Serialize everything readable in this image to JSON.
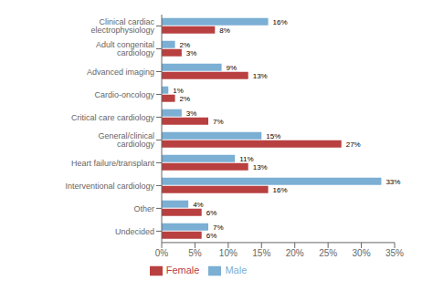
{
  "chart_data": {
    "type": "bar",
    "orientation": "horizontal",
    "categories": [
      "Clinical cardiac electrophysiology",
      "Adult congenital cardiology",
      "Advanced imaging",
      "Cardio-oncology",
      "Critical care cardiology",
      "General/clinical cardiology",
      "Heart failure/transplant",
      "Interventional cardiology",
      "Other",
      "Undecided"
    ],
    "series": [
      {
        "name": "Male",
        "color": "#7bafd4",
        "values": [
          16,
          2,
          9,
          1,
          3,
          15,
          11,
          33,
          4,
          7
        ],
        "value_labels": [
          "16%",
          "2%",
          "9%",
          "1%",
          "3%",
          "15%",
          "11%",
          "33%",
          "4%",
          "7%"
        ]
      },
      {
        "name": "Female",
        "color": "#b94040",
        "values": [
          8,
          3,
          13,
          2,
          7,
          27,
          13,
          16,
          6,
          6
        ],
        "value_labels": [
          "8%",
          "3%",
          "13%",
          "2%",
          "7%",
          "27%",
          "13%",
          "16%",
          "6%",
          "6%"
        ]
      }
    ],
    "xlim": [
      0,
      35
    ],
    "xticks": [
      {
        "value": 0,
        "label": "0%"
      },
      {
        "value": 5,
        "label": "5%"
      },
      {
        "value": 10,
        "label": "10%"
      },
      {
        "value": 15,
        "label": "15%"
      },
      {
        "value": 20,
        "label": "20%"
      },
      {
        "value": 25,
        "label": "25%"
      },
      {
        "value": 30,
        "label": "30%"
      },
      {
        "value": 35,
        "label": "35%"
      }
    ],
    "data_labels": true,
    "legend": "bottom",
    "grid": false
  }
}
